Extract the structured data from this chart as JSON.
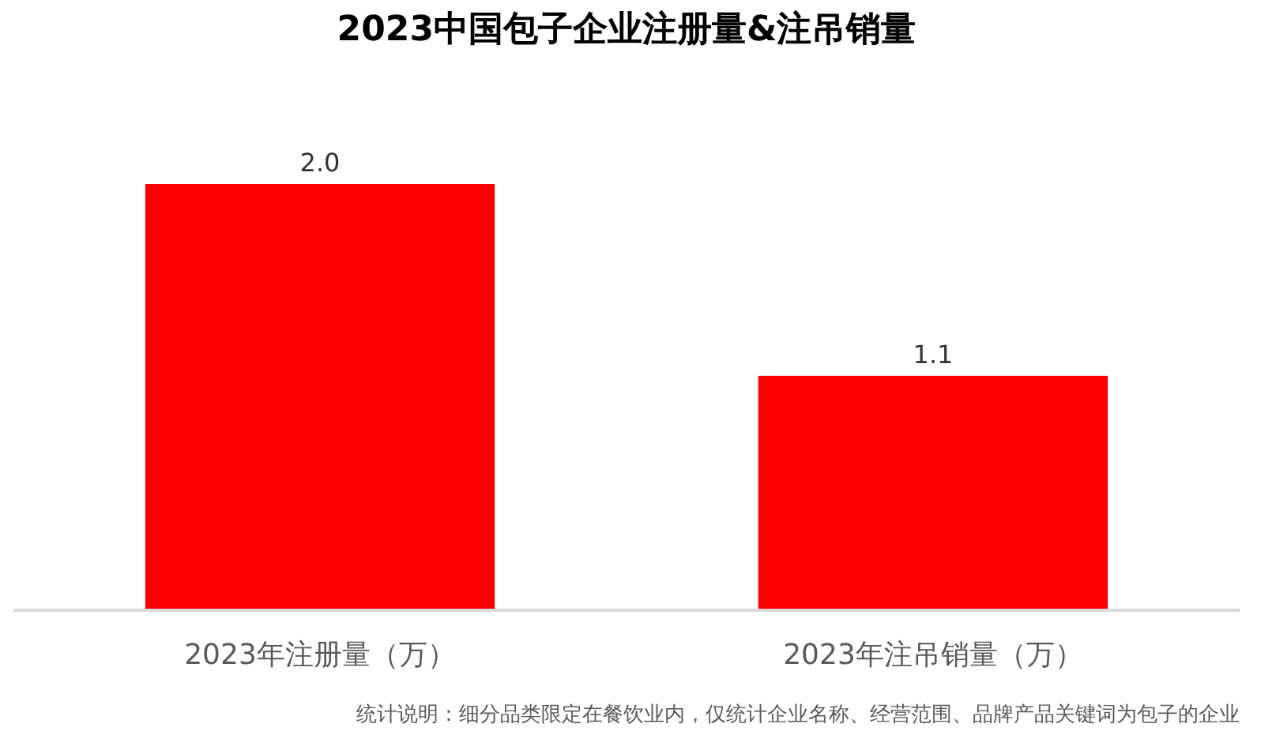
{
  "chart_data": {
    "type": "bar",
    "title": "2023中国包子企业注册量&注吊销量",
    "categories": [
      "2023年注册量（万）",
      "2023年注吊销量（万）"
    ],
    "values": [
      2.0,
      1.1
    ],
    "value_labels": [
      "2.0",
      "1.1"
    ],
    "color": "#ff0000",
    "tick_labels": "x",
    "annotations": [
      "统计说明：细分品类限定在餐饮业内，仅统计企业名称、经营范围、品牌产品关键词为包子的企业"
    ]
  }
}
